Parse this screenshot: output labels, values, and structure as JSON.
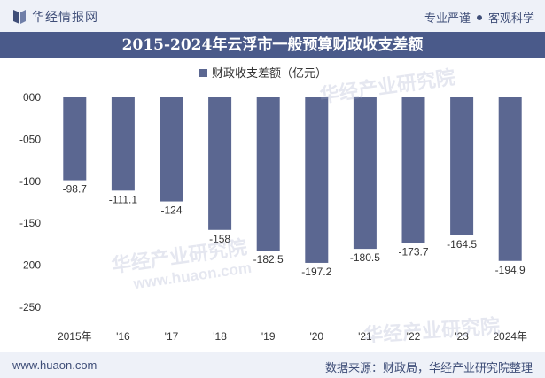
{
  "header": {
    "brand": "华经情报网",
    "tagline_left": "专业严谨",
    "tagline_right": "客观科学"
  },
  "title": "2015-2024年云浮市一般预算财政收支差额",
  "watermark": "华经产业研究院",
  "watermark_url": "www.huaon.com",
  "chart_data": {
    "type": "bar",
    "title": "2015-2024年云浮市一般预算财政收支差额",
    "legend": "财政收支差额（亿元）",
    "categories": [
      "2015年",
      "'16",
      "'17",
      "'18",
      "'19",
      "'20",
      "'21",
      "'22",
      "'23",
      "2024年"
    ],
    "values": [
      -98.7,
      -111.1,
      -124,
      -158,
      -182.5,
      -197.2,
      -180.5,
      -173.7,
      -164.5,
      -194.9
    ],
    "value_labels": [
      "-98.7",
      "-111.1",
      "-124",
      "-158",
      "-182.5",
      "-197.2",
      "-180.5",
      "-173.7",
      "-164.5",
      "-194.9"
    ],
    "yticks": [
      0,
      -50,
      -100,
      -150,
      -200,
      -250
    ],
    "ytick_labels": [
      "000",
      "-050",
      "-100",
      "-150",
      "-200",
      "-250"
    ],
    "ylim": [
      -250,
      0
    ],
    "bar_color": "#5b6791",
    "legend_position": "top-center"
  },
  "footer": {
    "website": "www.huaon.com",
    "source": "数据来源：财政局，华经产业研究院整理"
  }
}
